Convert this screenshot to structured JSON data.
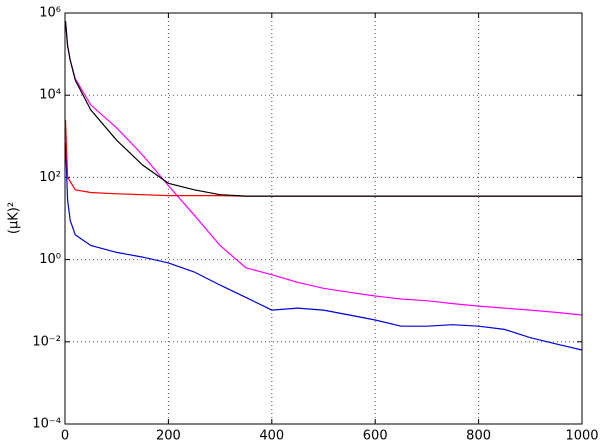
{
  "chart_data": {
    "type": "line",
    "y_label": "(μK)²",
    "log_y": true,
    "grid": true,
    "x": [
      1,
      5,
      10,
      20,
      50,
      100,
      150,
      200,
      250,
      300,
      350,
      400,
      450,
      500,
      550,
      600,
      650,
      700,
      750,
      800,
      850,
      900,
      950,
      1000
    ],
    "xlim": [
      0,
      1000
    ],
    "xticks": [
      0,
      200,
      400,
      600,
      800,
      1000
    ],
    "ylim": [
      0.0001,
      1000000
    ],
    "yticks": [
      {
        "value": 0.0001,
        "label": "10⁻⁴"
      },
      {
        "value": 0.01,
        "label": "10⁻²"
      },
      {
        "value": 1,
        "label": "10⁰"
      },
      {
        "value": 100,
        "label": "10²"
      },
      {
        "value": 10000,
        "label": "10⁴"
      },
      {
        "value": 1000000,
        "label": "10⁶"
      }
    ],
    "series": [
      {
        "color": "#ff00ff",
        "values": [
          630000,
          160000,
          72000,
          25000,
          5800,
          1600,
          350,
          63,
          12,
          2.2,
          0.63,
          0.43,
          0.28,
          0.2,
          0.16,
          0.13,
          0.11,
          0.1,
          0.085,
          0.074,
          0.066,
          0.059,
          0.052,
          0.045
        ]
      },
      {
        "color": "#0000dd",
        "values": [
          700,
          28,
          9,
          4,
          2.2,
          1.5,
          1.15,
          0.83,
          0.5,
          0.24,
          0.12,
          0.059,
          0.066,
          0.059,
          0.045,
          0.034,
          0.024,
          0.024,
          0.026,
          0.024,
          0.02,
          0.0126,
          0.0089,
          0.0063
        ]
      },
      {
        "color": "#ff0000",
        "values": [
          2500,
          100,
          80,
          50,
          43,
          40,
          38,
          36,
          36,
          36,
          35,
          35,
          35,
          35,
          35,
          35,
          35,
          35,
          35,
          35,
          35,
          35,
          35,
          35
        ]
      },
      {
        "color": "#000000",
        "values": [
          630000,
          160000,
          72000,
          23000,
          4400,
          800,
          200,
          72,
          50,
          38,
          35,
          35,
          35,
          35,
          35,
          35,
          35,
          35,
          35,
          35,
          35,
          35,
          35,
          35
        ]
      }
    ]
  }
}
